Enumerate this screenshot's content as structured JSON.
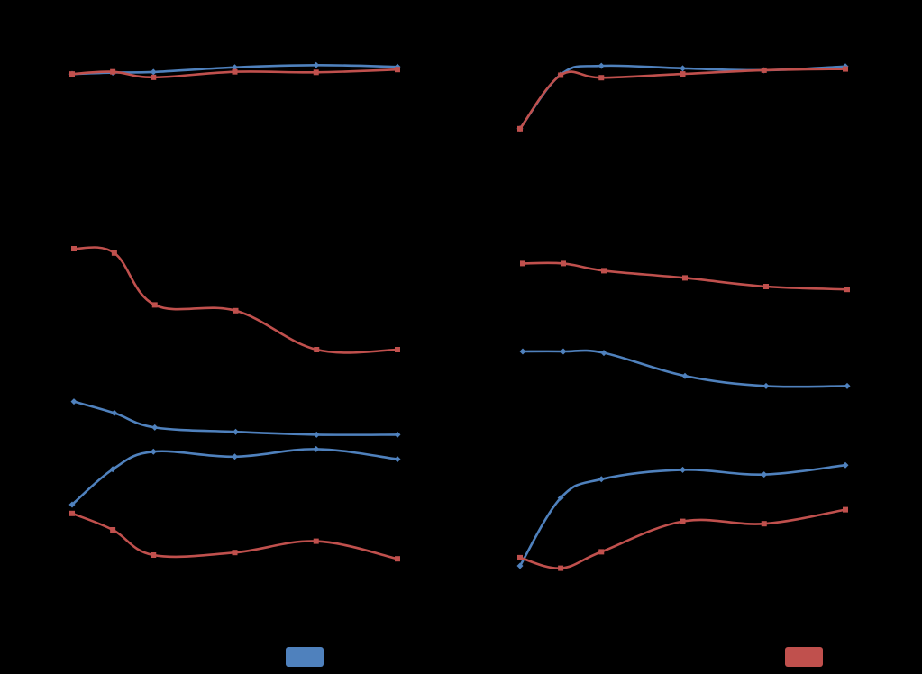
{
  "chart_data": [
    {
      "type": "line",
      "panel": "top-left",
      "x": [
        0,
        1,
        2,
        4,
        6,
        8
      ],
      "xlim": [
        0,
        8
      ],
      "ylim": [
        0,
        1
      ],
      "series": [
        {
          "values": [
            0.82,
            0.833,
            0.838,
            0.88,
            0.9,
            0.885
          ],
          "color": "#4f81bd",
          "marker": "diamond"
        },
        {
          "values": [
            0.82,
            0.84,
            0.79,
            0.84,
            0.835,
            0.86
          ],
          "color": "#c0504d",
          "marker": "square"
        }
      ]
    },
    {
      "type": "line",
      "panel": "top-right",
      "x": [
        0,
        1,
        2,
        4,
        6,
        8
      ],
      "xlim": [
        0,
        8
      ],
      "ylim": [
        0,
        1
      ],
      "series": [
        {
          "values": [
            0.4,
            0.835,
            0.905,
            0.885,
            0.87,
            0.9
          ],
          "color": "#4f81bd",
          "marker": "diamond"
        },
        {
          "values": [
            0.4,
            0.83,
            0.81,
            0.84,
            0.87,
            0.88
          ],
          "color": "#c0504d",
          "marker": "square"
        }
      ]
    },
    {
      "type": "line",
      "panel": "middle-left",
      "x": [
        0,
        1,
        2,
        4,
        6,
        8
      ],
      "xlim": [
        0,
        8
      ],
      "ylim": [
        0,
        1
      ],
      "series": [
        {
          "values": [
            0.42,
            0.38,
            0.33,
            0.315,
            0.305,
            0.305
          ],
          "color": "#4f81bd",
          "marker": "diamond"
        },
        {
          "values": [
            0.95,
            0.935,
            0.755,
            0.735,
            0.6,
            0.6
          ],
          "color": "#c0504d",
          "marker": "square"
        }
      ]
    },
    {
      "type": "line",
      "panel": "middle-right",
      "x": [
        0,
        1,
        2,
        4,
        6,
        8
      ],
      "xlim": [
        0,
        8
      ],
      "ylim": [
        0,
        1
      ],
      "series": [
        {
          "values": [
            0.625,
            0.625,
            0.62,
            0.54,
            0.505,
            0.505
          ],
          "color": "#4f81bd",
          "marker": "diamond"
        },
        {
          "values": [
            0.93,
            0.93,
            0.905,
            0.88,
            0.85,
            0.84
          ],
          "color": "#c0504d",
          "marker": "square"
        }
      ]
    },
    {
      "type": "line",
      "panel": "bottom-left",
      "x": [
        0,
        1,
        2,
        4,
        6,
        8
      ],
      "xlim": [
        0,
        8
      ],
      "ylim": [
        0,
        1
      ],
      "series": [
        {
          "values": [
            0.5,
            0.64,
            0.71,
            0.69,
            0.72,
            0.68
          ],
          "color": "#4f81bd",
          "marker": "diamond"
        },
        {
          "values": [
            0.465,
            0.4,
            0.3,
            0.31,
            0.355,
            0.285
          ],
          "color": "#c0504d",
          "marker": "square"
        }
      ]
    },
    {
      "type": "line",
      "panel": "bottom-right",
      "x": [
        0,
        1,
        2,
        4,
        6,
        8
      ],
      "xlim": [
        0,
        8
      ],
      "ylim": [
        0,
        1
      ],
      "series": [
        {
          "values": [
            0.2,
            0.49,
            0.57,
            0.61,
            0.59,
            0.63
          ],
          "color": "#4f81bd",
          "marker": "diamond"
        },
        {
          "values": [
            0.235,
            0.19,
            0.26,
            0.39,
            0.38,
            0.44
          ],
          "color": "#c0504d",
          "marker": "square"
        }
      ]
    }
  ],
  "legend": {
    "items": [
      {
        "label": "",
        "color": "#4f81bd"
      },
      {
        "label": "",
        "color": "#c0504d"
      }
    ]
  }
}
